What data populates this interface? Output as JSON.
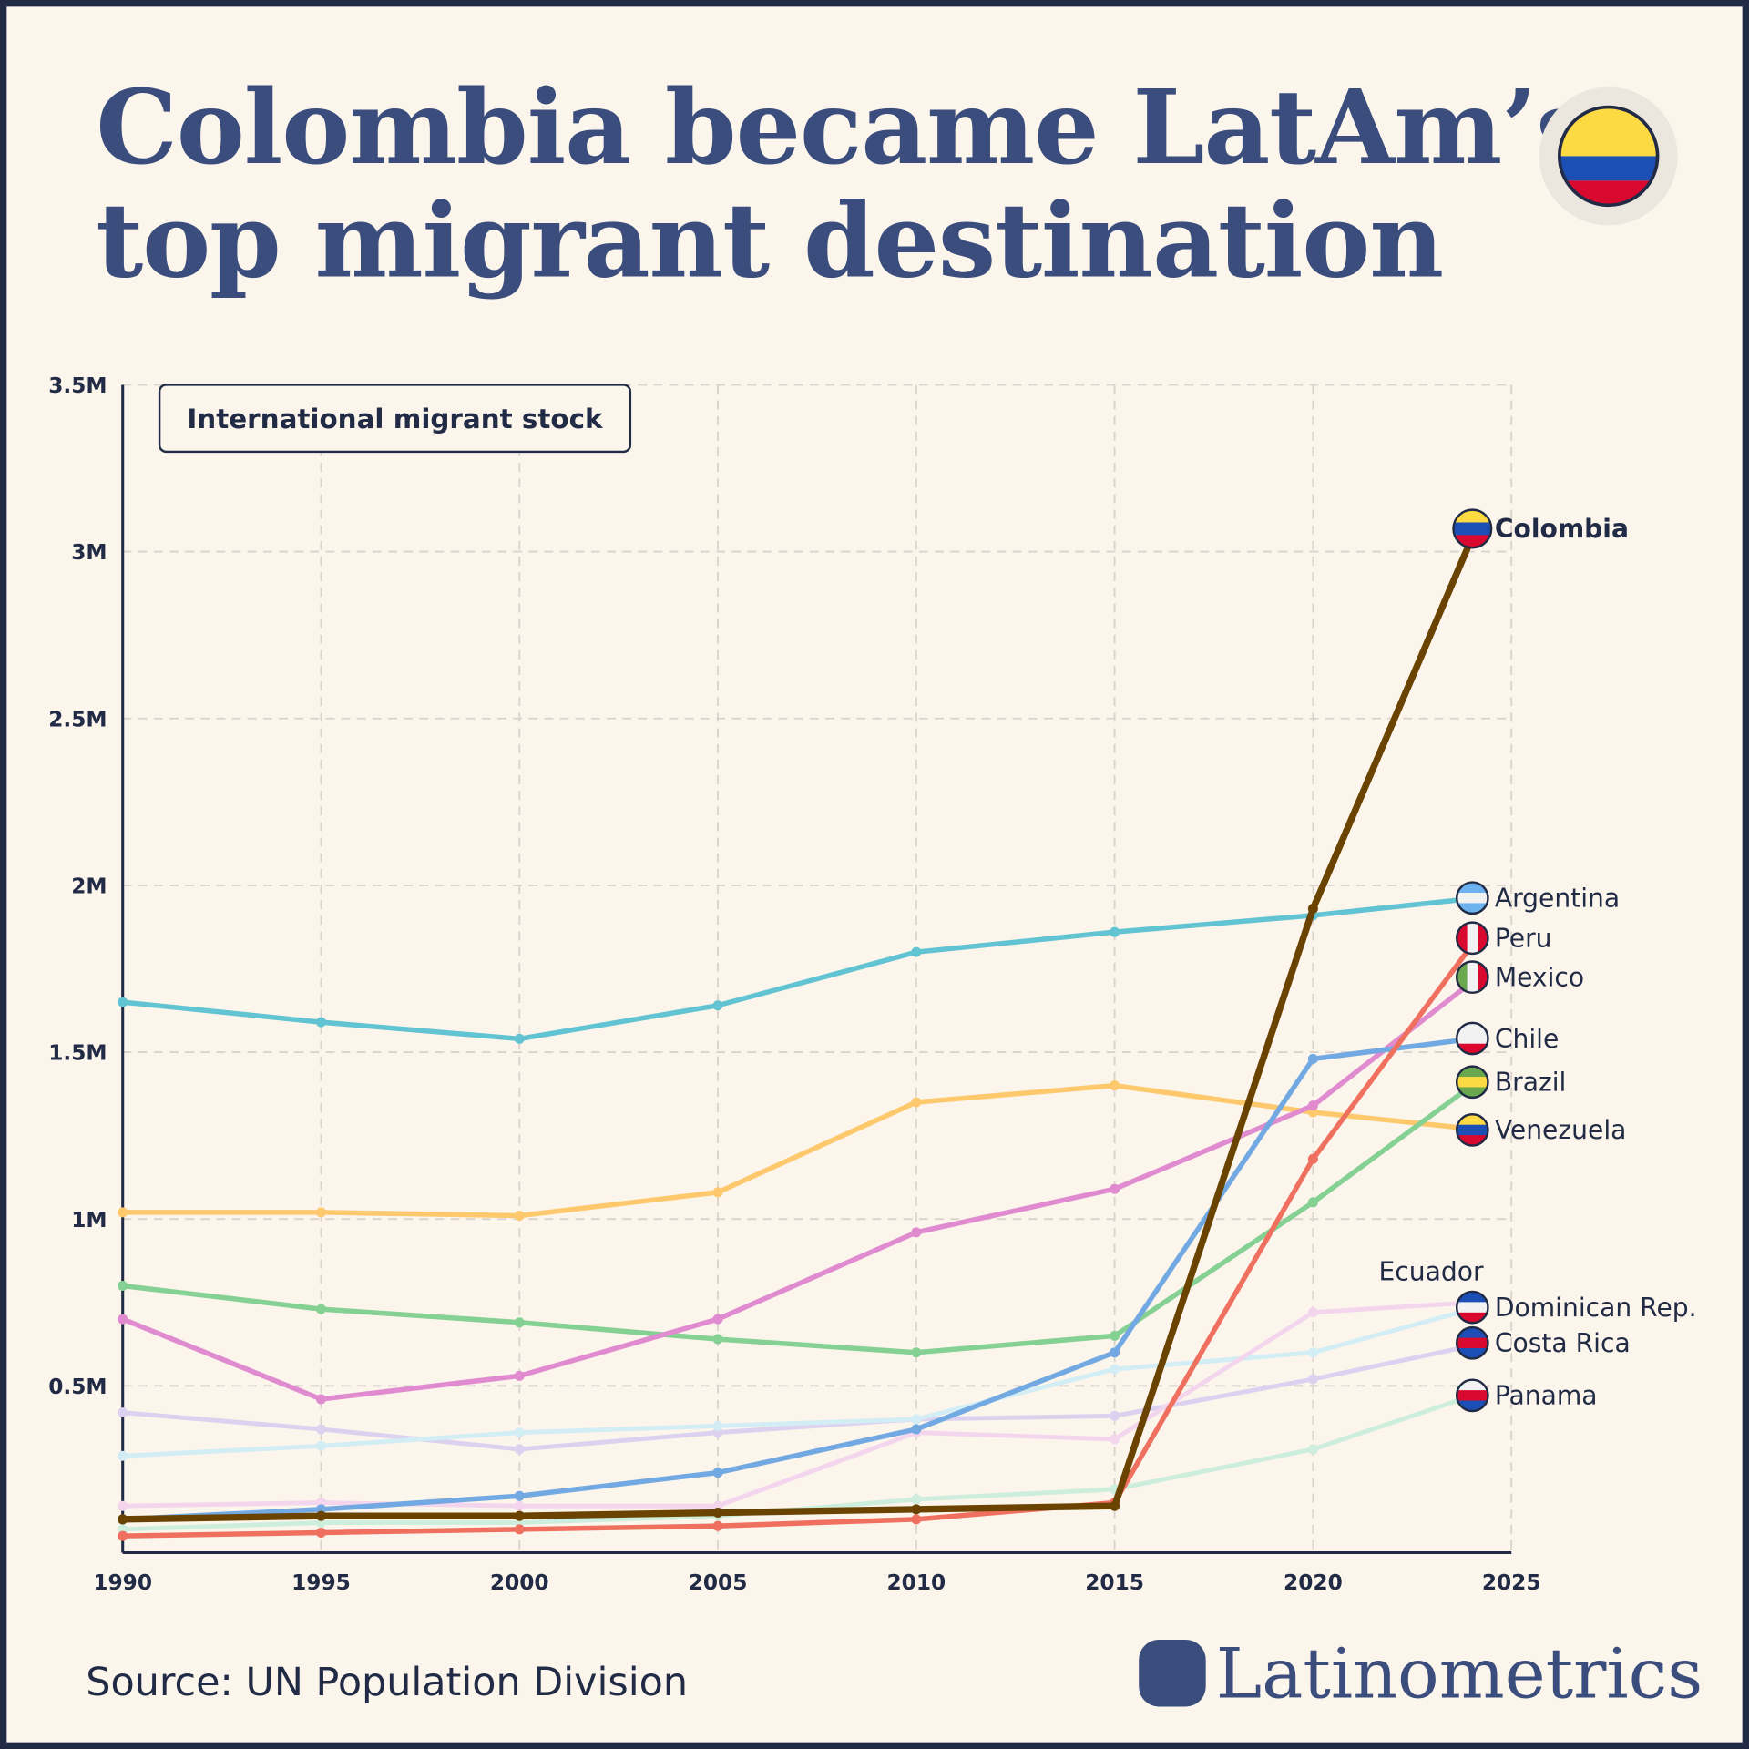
{
  "title_lines": [
    "Colombia became LatAm’s",
    "top migrant destination"
  ],
  "source": "Source: UN Population Division",
  "brand": "Latinometrics",
  "chart_data": {
    "type": "line",
    "title": "International migrant stock",
    "x": [
      1990,
      1995,
      2000,
      2005,
      2010,
      2015,
      2020,
      2024
    ],
    "xlim": [
      1990,
      2025
    ],
    "ylim": [
      0,
      3500000
    ],
    "x_ticks": [
      "1990",
      "1995",
      "2000",
      "2005",
      "2010",
      "2015",
      "2020",
      "2025"
    ],
    "y_ticks": [
      {
        "v": 500000,
        "label": "0.5M"
      },
      {
        "v": 1000000,
        "label": "1M"
      },
      {
        "v": 1500000,
        "label": "1.5M"
      },
      {
        "v": 2000000,
        "label": "2M"
      },
      {
        "v": 2500000,
        "label": "2.5M"
      },
      {
        "v": 3000000,
        "label": "3M"
      },
      {
        "v": 3500000,
        "label": "3.5M"
      }
    ],
    "grid": true,
    "series": [
      {
        "name": "Panama",
        "color": "#cdeedd",
        "values": [
          70000,
          90000,
          90000,
          110000,
          160000,
          190000,
          310000,
          470000
        ]
      },
      {
        "name": "Costa Rica",
        "color": "#dcd2f0",
        "values": [
          420000,
          370000,
          310000,
          360000,
          400000,
          410000,
          520000,
          620000
        ]
      },
      {
        "name": "Ecuador",
        "color": "#d3edf5",
        "values": [
          290000,
          320000,
          360000,
          380000,
          400000,
          550000,
          600000,
          730000
        ]
      },
      {
        "name": "Dominican Rep.",
        "color": "#f4d5ee",
        "values": [
          140000,
          150000,
          140000,
          140000,
          360000,
          340000,
          720000,
          750000
        ]
      },
      {
        "name": "Venezuela",
        "color": "#fec86c",
        "values": [
          1020000,
          1020000,
          1010000,
          1080000,
          1350000,
          1400000,
          1320000,
          1270000
        ]
      },
      {
        "name": "Brazil",
        "color": "#85d093",
        "values": [
          800000,
          730000,
          690000,
          640000,
          600000,
          650000,
          1050000,
          1400000
        ]
      },
      {
        "name": "Mexico",
        "color": "#e08bd0",
        "values": [
          700000,
          460000,
          530000,
          700000,
          960000,
          1090000,
          1340000,
          1710000
        ]
      },
      {
        "name": "Chile",
        "color": "#72a9e2",
        "values": [
          100000,
          130000,
          170000,
          240000,
          370000,
          600000,
          1480000,
          1540000
        ]
      },
      {
        "name": "Argentina",
        "color": "#62c4d2",
        "values": [
          1650000,
          1590000,
          1540000,
          1640000,
          1800000,
          1860000,
          1910000,
          1960000
        ]
      },
      {
        "name": "Peru",
        "color": "#f07060",
        "values": [
          50000,
          60000,
          70000,
          80000,
          100000,
          150000,
          1180000,
          1820000
        ]
      },
      {
        "name": "Colombia",
        "color": "#6b4300",
        "values": [
          100000,
          110000,
          110000,
          120000,
          130000,
          140000,
          1930000,
          3040000
        ]
      }
    ]
  }
}
